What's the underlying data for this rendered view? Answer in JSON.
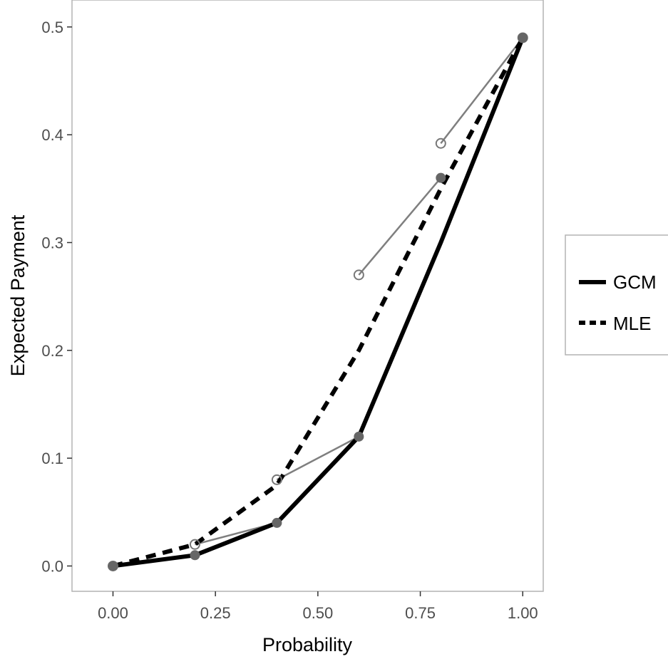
{
  "chart_data": {
    "type": "line",
    "title": "",
    "xlabel": "Probability",
    "ylabel": "Expected Payment",
    "xlim": [
      -0.1,
      1.05
    ],
    "ylim": [
      -0.0235,
      0.525
    ],
    "x_ticks": [
      "0.00",
      "0.25",
      "0.50",
      "0.75",
      "1.00"
    ],
    "x_tick_values": [
      0,
      0.25,
      0.5,
      0.75,
      1.0
    ],
    "y_ticks": [
      "0.0",
      "0.1",
      "0.2",
      "0.3",
      "0.4",
      "0.5"
    ],
    "y_tick_values": [
      0,
      0.1,
      0.2,
      0.3,
      0.4,
      0.5
    ],
    "grid": false,
    "legend_position": "right",
    "series": [
      {
        "name": "GCM",
        "style": "solid",
        "color": "#000000",
        "x": [
          0,
          0.2,
          0.4,
          0.6,
          0.8,
          1.0
        ],
        "y": [
          0,
          0.01,
          0.04,
          0.12,
          0.3,
          0.49
        ]
      },
      {
        "name": "MLE",
        "style": "dashed",
        "color": "#000000",
        "x": [
          0,
          0.2,
          0.4,
          0.6,
          0.8,
          1.0
        ],
        "y": [
          0,
          0.02,
          0.075,
          0.2,
          0.35,
          0.49
        ]
      }
    ],
    "filled_points": {
      "color": "#666666",
      "x": [
        0,
        0.2,
        0.4,
        0.6,
        0.8,
        1.0
      ],
      "y": [
        0,
        0.01,
        0.04,
        0.12,
        0.36,
        0.49
      ]
    },
    "open_points": {
      "color": "#777777",
      "x": [
        0,
        0.2,
        0.4,
        0.6,
        0.8,
        1.0
      ],
      "y": [
        0,
        0.02,
        0.08,
        0.27,
        0.392,
        0.49
      ]
    },
    "connectors": [
      {
        "x": [
          0.2,
          0.4,
          0.6
        ],
        "y": [
          0.02,
          0.04,
          0.12
        ]
      },
      {
        "x": [
          0.4,
          0.6
        ],
        "y": [
          0.08,
          0.12
        ]
      },
      {
        "x": [
          0.6,
          0.8
        ],
        "y": [
          0.27,
          0.36
        ]
      },
      {
        "x": [
          0.8,
          1.0
        ],
        "y": [
          0.392,
          0.49
        ]
      }
    ]
  }
}
